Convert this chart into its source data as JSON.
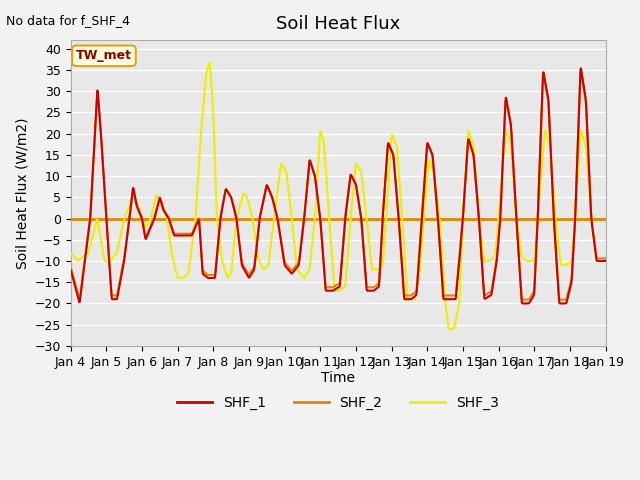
{
  "title": "Soil Heat Flux",
  "top_left_text": "No data for f_SHF_4",
  "ylabel": "Soil Heat Flux (W/m2)",
  "xlabel": "Time",
  "annotation_text": "TW_met",
  "ylim": [
    -30,
    42
  ],
  "yticks": [
    -30,
    -25,
    -20,
    -15,
    -10,
    -5,
    0,
    5,
    10,
    15,
    20,
    25,
    30,
    35,
    40
  ],
  "x_tick_labels": [
    "Jan 4",
    "Jan 5",
    "Jan 6",
    "Jan 7",
    "Jan 8",
    "Jan 9",
    "Jan 10",
    "Jan 11",
    "Jan 12",
    "Jan 13",
    "Jan 14",
    "Jan 15",
    "Jan 16",
    "Jan 17",
    "Jan 18",
    "Jan 19"
  ],
  "color_SHF1": "#cc0000",
  "color_SHF2": "#dd8800",
  "color_SHF3": "#eeee00",
  "legend_labels": [
    "SHF_1",
    "SHF_2",
    "SHF_3"
  ],
  "bg_color": "#e8e8e8",
  "grid_color": "white",
  "title_fontsize": 13,
  "axis_fontsize": 10,
  "tick_fontsize": 9
}
